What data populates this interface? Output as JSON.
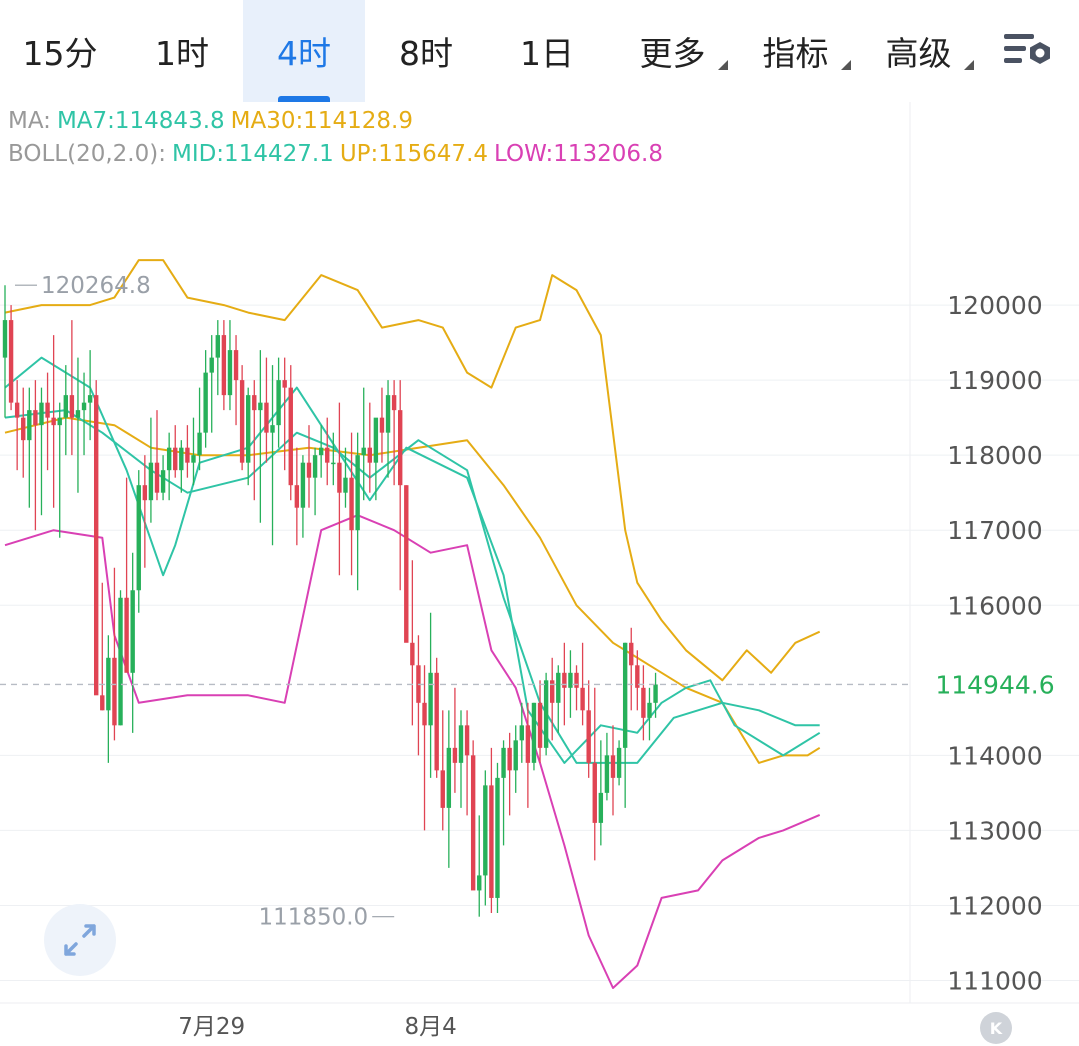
{
  "tabs": [
    {
      "label": "15分",
      "active": false,
      "dropdown": false
    },
    {
      "label": "1时",
      "active": false,
      "dropdown": false
    },
    {
      "label": "4时",
      "active": true,
      "dropdown": false
    },
    {
      "label": "8时",
      "active": false,
      "dropdown": false
    },
    {
      "label": "1日",
      "active": false,
      "dropdown": false
    },
    {
      "label": "更多",
      "active": false,
      "dropdown": true
    },
    {
      "label": "指标",
      "active": false,
      "dropdown": true
    },
    {
      "label": "高级",
      "active": false,
      "dropdown": true
    }
  ],
  "settings_icon": "chart-settings-icon",
  "legend": {
    "ma_prefix": "MA:",
    "ma7": "MA7:114843.8",
    "ma30": "MA30:114128.9",
    "boll_prefix": "BOLL(20,2.0):",
    "mid": "MID:114427.1",
    "up": "UP:115647.4",
    "low": "LOW:113206.8"
  },
  "colors": {
    "up": "#27b05a",
    "down": "#e04453",
    "ma7": "#2fc4a6",
    "ma30": "#e5ac14",
    "boll_mid": "#2fc4a6",
    "boll_up": "#e5ac14",
    "boll_low": "#d940b4",
    "current_price": "#27b05a",
    "grid": "#eef0f3",
    "axis_text": "#555555",
    "active_tab": "#1e78e6"
  },
  "chart_data": {
    "type": "candlestick",
    "y_ticks": [
      120000,
      119000,
      118000,
      117000,
      116000,
      114000,
      113000,
      112000,
      111000
    ],
    "ylim": [
      110700,
      121800
    ],
    "x_labels": [
      {
        "index": 34,
        "label": "7月29"
      },
      {
        "index": 70,
        "label": "8月4"
      }
    ],
    "high_marker": {
      "value": 120264.8,
      "label": "120264.8",
      "index": 0
    },
    "low_marker": {
      "value": 111850.0,
      "label": "111850.0",
      "index": 65
    },
    "current_price": {
      "value": 114944.6,
      "label": "114944.6"
    },
    "candles_ohlc": [
      [
        119300,
        120264.8,
        118500,
        119800
      ],
      [
        119800,
        120000,
        118600,
        118700
      ],
      [
        118700,
        119000,
        117800,
        118500
      ],
      [
        118500,
        118900,
        117700,
        118200
      ],
      [
        118200,
        118900,
        117300,
        118600
      ],
      [
        118600,
        119000,
        117000,
        118400
      ],
      [
        118400,
        118900,
        117200,
        118700
      ],
      [
        118700,
        119100,
        117800,
        118500
      ],
      [
        118500,
        119600,
        117300,
        118400
      ],
      [
        118400,
        118700,
        116900,
        118500
      ],
      [
        118500,
        119200,
        118000,
        118800
      ],
      [
        118800,
        119800,
        118000,
        118500
      ],
      [
        118500,
        119300,
        117500,
        118600
      ],
      [
        118600,
        119100,
        118000,
        118700
      ],
      [
        118700,
        119400,
        118200,
        118800
      ],
      [
        118800,
        119000,
        116400,
        114800
      ],
      [
        114800,
        116300,
        114600,
        114600
      ],
      [
        114600,
        115600,
        113900,
        115300
      ],
      [
        115300,
        116500,
        114200,
        114400
      ],
      [
        114400,
        116200,
        114400,
        116100
      ],
      [
        116100,
        117700,
        115400,
        115100
      ],
      [
        115100,
        116700,
        114300,
        116200
      ],
      [
        116200,
        117800,
        115900,
        117600
      ],
      [
        117600,
        118000,
        116500,
        117400
      ],
      [
        117400,
        118500,
        117100,
        117900
      ],
      [
        117900,
        118600,
        117400,
        117500
      ],
      [
        117500,
        118000,
        117400,
        117800
      ],
      [
        117800,
        118300,
        117400,
        118100
      ],
      [
        118100,
        118400,
        117700,
        117800
      ],
      [
        117800,
        118200,
        117500,
        118100
      ],
      [
        118100,
        118400,
        117700,
        117900
      ],
      [
        117900,
        118500,
        117600,
        118000
      ],
      [
        118000,
        118900,
        117800,
        118300
      ],
      [
        118300,
        119400,
        118100,
        119100
      ],
      [
        119100,
        119600,
        118300,
        119300
      ],
      [
        119300,
        119800,
        118800,
        119600
      ],
      [
        119600,
        119800,
        118600,
        118800
      ],
      [
        118800,
        119800,
        118600,
        119400
      ],
      [
        119400,
        119600,
        118400,
        119000
      ],
      [
        119000,
        119200,
        117800,
        117900
      ],
      [
        117900,
        118900,
        117600,
        118800
      ],
      [
        118800,
        119000,
        117400,
        118600
      ],
      [
        118600,
        119400,
        117100,
        118700
      ],
      [
        118700,
        119300,
        117900,
        118300
      ],
      [
        118300,
        119200,
        116800,
        118400
      ],
      [
        118400,
        119300,
        118100,
        119000
      ],
      [
        119000,
        119300,
        117800,
        118900
      ],
      [
        118900,
        119200,
        117400,
        117600
      ],
      [
        117600,
        118100,
        116800,
        117300
      ],
      [
        117300,
        118000,
        116900,
        117900
      ],
      [
        117900,
        118400,
        117300,
        117700
      ],
      [
        117700,
        118100,
        117200,
        118000
      ],
      [
        118000,
        118400,
        117700,
        118100
      ],
      [
        118100,
        118500,
        117600,
        117900
      ],
      [
        117900,
        118300,
        117600,
        117900
      ],
      [
        117900,
        118700,
        116400,
        117500
      ],
      [
        117500,
        118100,
        117300,
        117700
      ],
      [
        117700,
        118300,
        116400,
        117000
      ],
      [
        117000,
        118300,
        116200,
        118000
      ],
      [
        118000,
        118900,
        117400,
        118100
      ],
      [
        118100,
        118700,
        117500,
        117900
      ],
      [
        117900,
        118400,
        117400,
        118500
      ],
      [
        118500,
        118900,
        117900,
        118300
      ],
      [
        118300,
        119000,
        117700,
        118800
      ],
      [
        118800,
        119000,
        117600,
        118600
      ],
      [
        118600,
        119000,
        116200,
        117600
      ],
      [
        117600,
        117600,
        115800,
        115500
      ],
      [
        115500,
        116600,
        114400,
        115200
      ],
      [
        115200,
        115600,
        114000,
        114700
      ],
      [
        114700,
        115200,
        113000,
        114400
      ],
      [
        114400,
        115900,
        113700,
        115100
      ],
      [
        115100,
        115300,
        113700,
        113800
      ],
      [
        113800,
        114600,
        113000,
        113300
      ],
      [
        113300,
        114600,
        112500,
        114100
      ],
      [
        114100,
        114900,
        113500,
        113900
      ],
      [
        113900,
        114600,
        113300,
        114400
      ],
      [
        114400,
        114600,
        113200,
        114000
      ],
      [
        114000,
        114200,
        112700,
        112200
      ],
      [
        112200,
        113200,
        111850,
        112400
      ],
      [
        112400,
        113800,
        112000,
        113600
      ],
      [
        113600,
        114100,
        111900,
        112100
      ],
      [
        112100,
        113900,
        111900,
        113700
      ],
      [
        113700,
        114200,
        112800,
        114100
      ],
      [
        114100,
        114300,
        113200,
        113800
      ],
      [
        113800,
        114400,
        113500,
        114200
      ],
      [
        114200,
        114700,
        113900,
        114400
      ],
      [
        114400,
        114700,
        113300,
        113900
      ],
      [
        113900,
        114700,
        113800,
        114700
      ],
      [
        114700,
        115000,
        113900,
        114100
      ],
      [
        114100,
        115100,
        114000,
        115000
      ],
      [
        115000,
        115300,
        114200,
        114700
      ],
      [
        114700,
        115200,
        114300,
        115100
      ],
      [
        115100,
        115500,
        114400,
        114900
      ],
      [
        114900,
        115400,
        114500,
        115100
      ],
      [
        115100,
        115200,
        114600,
        114900
      ],
      [
        114900,
        115500,
        114400,
        114600
      ],
      [
        114600,
        115000,
        113700,
        113900
      ],
      [
        113900,
        114900,
        112600,
        113100
      ],
      [
        113100,
        114200,
        112800,
        113500
      ],
      [
        113500,
        114300,
        113400,
        114000
      ],
      [
        114000,
        114400,
        113200,
        113700
      ],
      [
        113700,
        114200,
        113600,
        114100
      ],
      [
        114100,
        115500,
        113300,
        115500
      ],
      [
        115500,
        115700,
        114600,
        115200
      ],
      [
        115200,
        115400,
        114600,
        114900
      ],
      [
        114900,
        115200,
        114200,
        114500
      ],
      [
        114500,
        114900,
        114200,
        114700
      ],
      [
        114700,
        115100,
        114500,
        114944.6
      ]
    ],
    "ma_curves": {
      "ma7_boll_mid_a": [
        [
          0,
          118900
        ],
        [
          6,
          119300
        ],
        [
          14,
          118900
        ],
        [
          20,
          117800
        ],
        [
          26,
          116400
        ],
        [
          28,
          116800
        ],
        [
          32,
          117900
        ],
        [
          40,
          118100
        ],
        [
          48,
          118900
        ],
        [
          56,
          117900
        ],
        [
          60,
          117400
        ],
        [
          66,
          118100
        ],
        [
          76,
          117700
        ],
        [
          82,
          116400
        ],
        [
          86,
          114600
        ],
        [
          92,
          113900
        ],
        [
          98,
          114400
        ],
        [
          104,
          114300
        ],
        [
          108,
          114700
        ],
        [
          112,
          114900
        ],
        [
          116,
          115000
        ],
        [
          120,
          114400
        ],
        [
          128,
          114000
        ],
        [
          134,
          114300
        ]
      ],
      "ma7_boll_mid_b": [
        [
          0,
          118500
        ],
        [
          10,
          118600
        ],
        [
          16,
          118300
        ],
        [
          24,
          117800
        ],
        [
          30,
          117500
        ],
        [
          40,
          117700
        ],
        [
          48,
          118300
        ],
        [
          54,
          118100
        ],
        [
          60,
          117700
        ],
        [
          68,
          118200
        ],
        [
          76,
          117800
        ],
        [
          82,
          116100
        ],
        [
          88,
          114700
        ],
        [
          94,
          113900
        ],
        [
          98,
          113900
        ],
        [
          104,
          113900
        ],
        [
          110,
          114500
        ],
        [
          118,
          114700
        ],
        [
          124,
          114600
        ],
        [
          130,
          114400
        ],
        [
          134,
          114400
        ]
      ],
      "ma30": [
        [
          0,
          118300
        ],
        [
          10,
          118500
        ],
        [
          18,
          118400
        ],
        [
          24,
          118100
        ],
        [
          32,
          118000
        ],
        [
          40,
          118000
        ],
        [
          50,
          118100
        ],
        [
          60,
          118000
        ],
        [
          68,
          118100
        ],
        [
          76,
          118200
        ],
        [
          82,
          117600
        ],
        [
          88,
          116900
        ],
        [
          94,
          116000
        ],
        [
          100,
          115500
        ],
        [
          106,
          115200
        ],
        [
          112,
          114900
        ],
        [
          118,
          114700
        ],
        [
          124,
          113900
        ],
        [
          128,
          114000
        ],
        [
          132,
          114000
        ],
        [
          134,
          114100
        ]
      ]
    },
    "boll_up": [
      [
        0,
        119900
      ],
      [
        6,
        120000
      ],
      [
        14,
        120000
      ],
      [
        18,
        120100
      ],
      [
        22,
        120600
      ],
      [
        26,
        120600
      ],
      [
        30,
        120100
      ],
      [
        36,
        120000
      ],
      [
        40,
        119900
      ],
      [
        46,
        119800
      ],
      [
        52,
        120400
      ],
      [
        58,
        120200
      ],
      [
        62,
        119700
      ],
      [
        68,
        119800
      ],
      [
        72,
        119700
      ],
      [
        76,
        119100
      ],
      [
        80,
        118900
      ],
      [
        84,
        119700
      ],
      [
        88,
        119800
      ],
      [
        90,
        120400
      ],
      [
        94,
        120200
      ],
      [
        98,
        119600
      ],
      [
        102,
        117000
      ],
      [
        104,
        116300
      ],
      [
        108,
        115800
      ],
      [
        112,
        115400
      ],
      [
        118,
        115000
      ],
      [
        122,
        115400
      ],
      [
        126,
        115100
      ],
      [
        130,
        115500
      ],
      [
        134,
        115647.4
      ]
    ],
    "boll_low": [
      [
        0,
        116800
      ],
      [
        8,
        117000
      ],
      [
        16,
        116900
      ],
      [
        18,
        115600
      ],
      [
        22,
        114700
      ],
      [
        30,
        114800
      ],
      [
        40,
        114800
      ],
      [
        46,
        114700
      ],
      [
        52,
        117000
      ],
      [
        58,
        117200
      ],
      [
        64,
        117000
      ],
      [
        70,
        116700
      ],
      [
        76,
        116800
      ],
      [
        80,
        115400
      ],
      [
        84,
        114900
      ],
      [
        88,
        113900
      ],
      [
        92,
        112800
      ],
      [
        96,
        111600
      ],
      [
        100,
        110900
      ],
      [
        104,
        111200
      ],
      [
        108,
        112100
      ],
      [
        114,
        112200
      ],
      [
        118,
        112600
      ],
      [
        124,
        112900
      ],
      [
        128,
        113000
      ],
      [
        134,
        113206.8
      ]
    ]
  }
}
